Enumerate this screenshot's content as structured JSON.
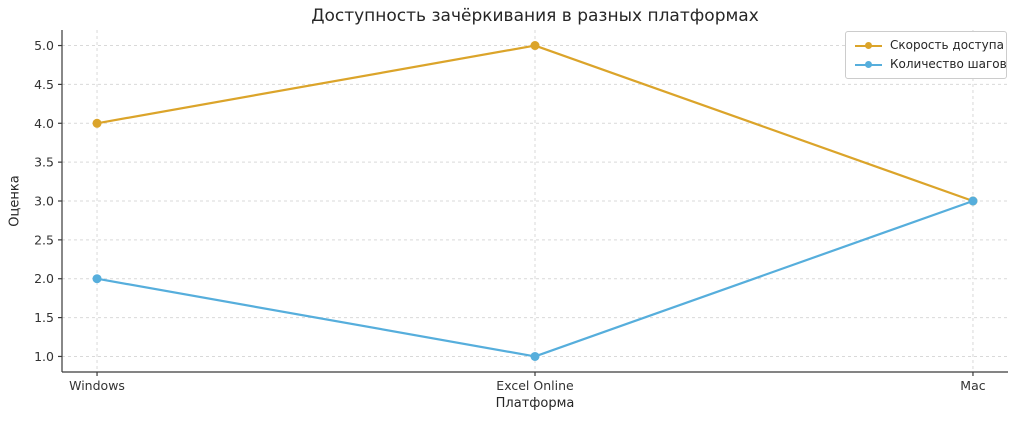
{
  "figure": {
    "background": "#ffffff"
  },
  "chart_data": {
    "type": "line",
    "title": "Доступность зачёркивания в разных платформах",
    "xlabel": "Платформа",
    "ylabel": "Оценка",
    "categories": [
      "Windows",
      "Excel Online",
      "Mac"
    ],
    "series": [
      {
        "name": "Скорость доступа",
        "values": [
          4,
          5,
          3
        ],
        "color": "#DBA42A"
      },
      {
        "name": "Количество шагов",
        "values": [
          2,
          1,
          3
        ],
        "color": "#56AEDC"
      }
    ],
    "yticks": [
      1.0,
      1.5,
      2.0,
      2.5,
      3.0,
      3.5,
      4.0,
      4.5,
      5.0
    ],
    "ytick_labels": [
      "1.0",
      "1.5",
      "2.0",
      "2.5",
      "3.0",
      "3.5",
      "4.0",
      "4.5",
      "5.0"
    ],
    "ylim": [
      0.8,
      5.2
    ],
    "xlim": [
      -0.08,
      2.08
    ],
    "grid": true,
    "grid_style": "dashed",
    "legend_position": "upper right"
  },
  "colors": {
    "grid": "#d9d9d9",
    "spine": "#3a3a3a",
    "text": "#333333",
    "legend_border": "#cccccc"
  }
}
